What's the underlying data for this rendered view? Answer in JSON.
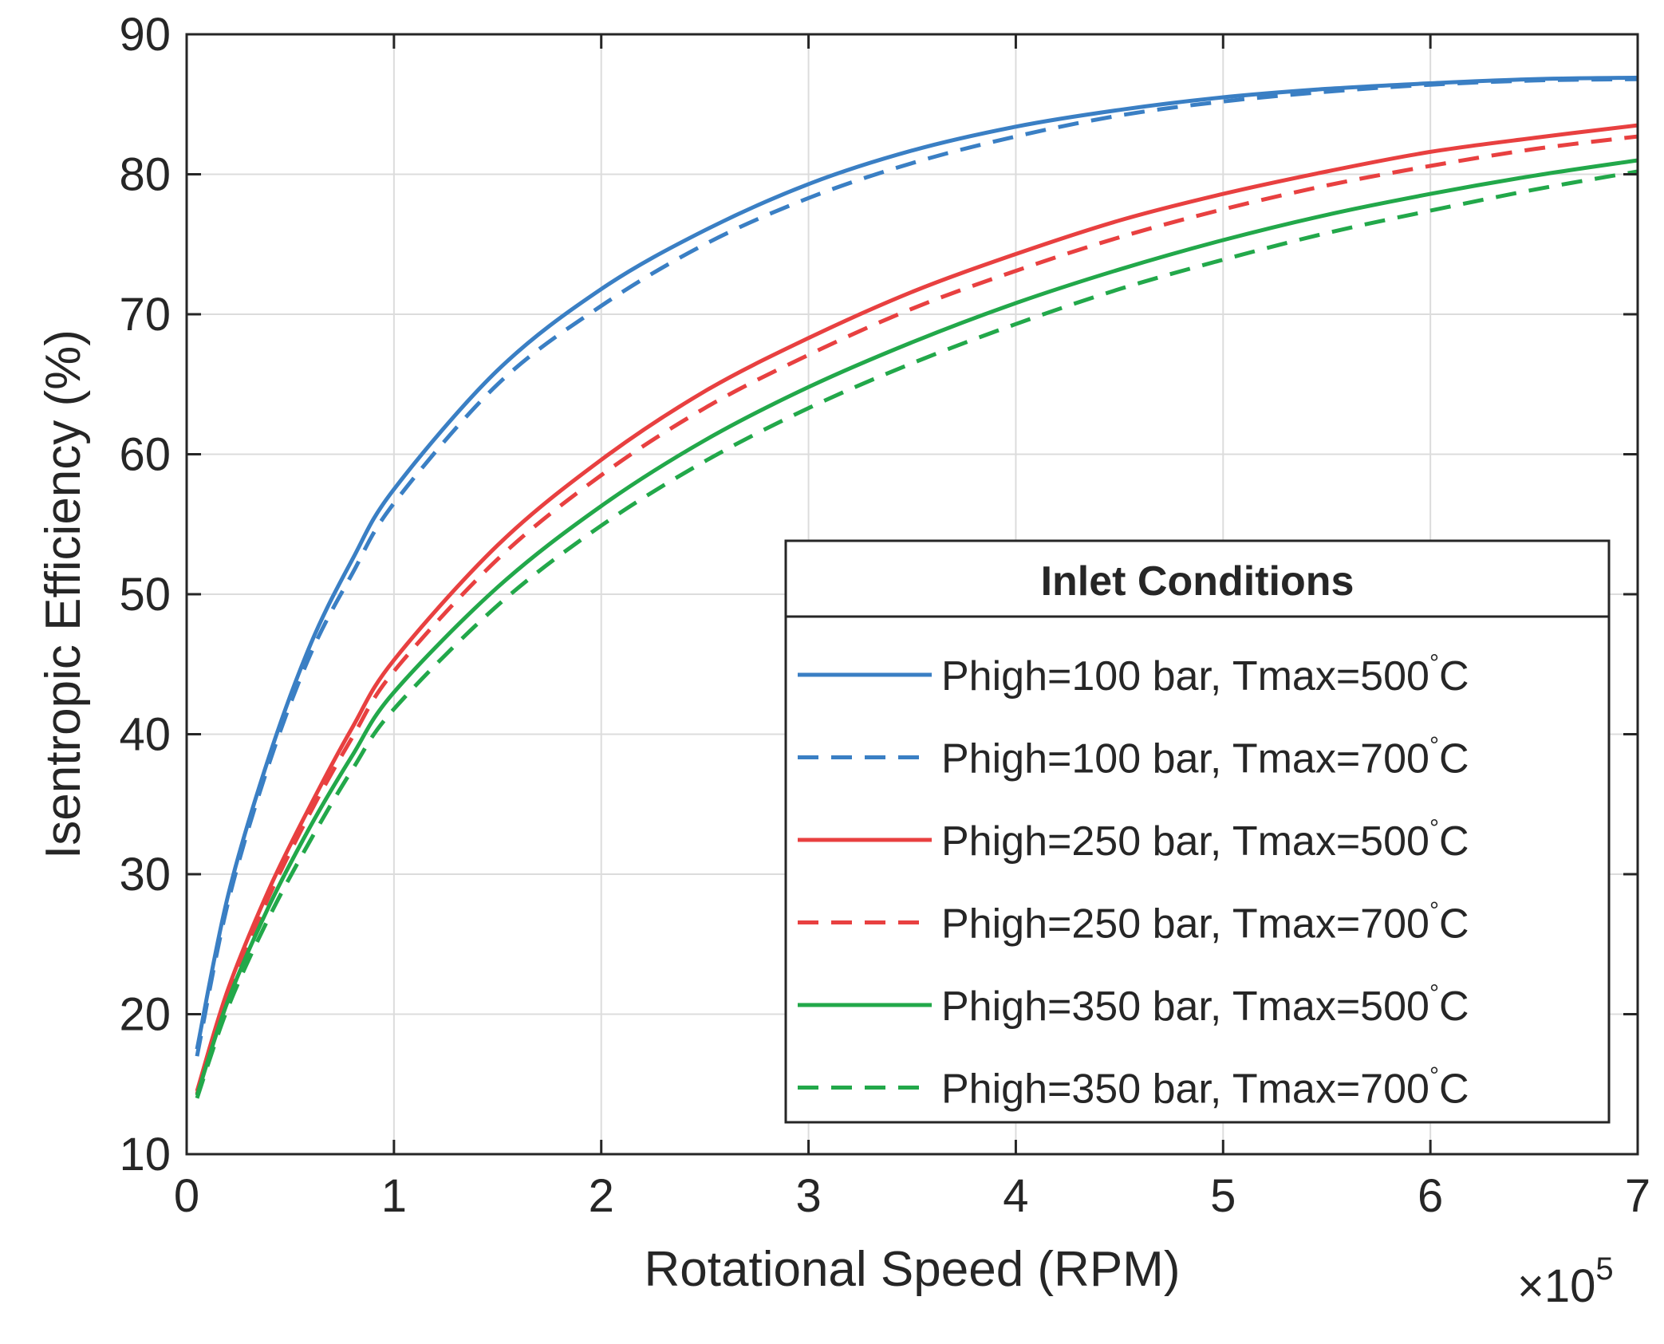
{
  "chart_data": {
    "type": "line",
    "title": "",
    "xlabel": "Rotational Speed (RPM)",
    "ylabel": "Isentropic Efficiency (%)",
    "x_exponent_label": "×10",
    "x_exponent_power": "5",
    "xlim": [
      0,
      7
    ],
    "ylim": [
      10,
      90
    ],
    "xticks": [
      0,
      1,
      2,
      3,
      4,
      5,
      6,
      7
    ],
    "yticks": [
      10,
      20,
      30,
      40,
      50,
      60,
      70,
      80,
      90
    ],
    "xtick_labels": [
      "0",
      "1",
      "2",
      "3",
      "4",
      "5",
      "6",
      "7"
    ],
    "ytick_labels": [
      "10",
      "20",
      "30",
      "40",
      "50",
      "60",
      "70",
      "80",
      "90"
    ],
    "grid": true,
    "legend": {
      "title": "Inlet Conditions",
      "placement": "lower-right",
      "degree_symbol": "°"
    },
    "x": [
      0.05,
      0.2,
      0.4,
      0.6,
      0.8,
      1.0,
      1.5,
      2.0,
      2.5,
      3.0,
      3.5,
      4.0,
      4.5,
      5.0,
      5.5,
      6.0,
      6.5,
      7.0
    ],
    "series": [
      {
        "name": "Phigh=100 bar, Tmax=500",
        "unit": "C",
        "color": "#3a7fc4",
        "dash": "solid",
        "values": [
          17.5,
          28.5,
          38.5,
          46.5,
          52.5,
          57.5,
          66.0,
          71.8,
          76.0,
          79.3,
          81.7,
          83.4,
          84.6,
          85.5,
          86.1,
          86.5,
          86.8,
          86.9
        ]
      },
      {
        "name": "Phigh=100 bar, Tmax=700",
        "unit": "C",
        "color": "#3a7fc4",
        "dash": "dashed",
        "values": [
          17.0,
          28.0,
          38.0,
          45.8,
          51.5,
          56.5,
          65.0,
          70.6,
          75.0,
          78.3,
          80.8,
          82.7,
          84.2,
          85.2,
          85.9,
          86.4,
          86.7,
          86.8
        ]
      },
      {
        "name": "Phigh=250 bar, Tmax=500",
        "unit": "C",
        "color": "#e84040",
        "dash": "solid",
        "values": [
          14.5,
          21.8,
          29.0,
          35.0,
          40.5,
          45.3,
          53.5,
          59.6,
          64.5,
          68.3,
          71.6,
          74.3,
          76.7,
          78.6,
          80.2,
          81.6,
          82.6,
          83.5
        ]
      },
      {
        "name": "Phigh=250 bar, Tmax=700",
        "unit": "C",
        "color": "#e84040",
        "dash": "dashed",
        "values": [
          14.3,
          21.3,
          28.5,
          34.5,
          39.8,
          44.5,
          52.5,
          58.5,
          63.3,
          67.1,
          70.4,
          73.1,
          75.5,
          77.5,
          79.2,
          80.6,
          81.8,
          82.7
        ]
      },
      {
        "name": "Phigh=350 bar, Tmax=500",
        "unit": "C",
        "color": "#22a84a",
        "dash": "solid",
        "values": [
          14.2,
          21.0,
          27.8,
          33.5,
          38.5,
          43.0,
          50.5,
          56.3,
          61.0,
          64.8,
          68.0,
          70.8,
          73.2,
          75.3,
          77.1,
          78.6,
          79.9,
          81.0
        ]
      },
      {
        "name": "Phigh=350 bar, Tmax=700",
        "unit": "C",
        "color": "#22a84a",
        "dash": "dashed",
        "values": [
          14.0,
          20.5,
          27.0,
          32.5,
          37.5,
          41.8,
          49.2,
          54.9,
          59.5,
          63.3,
          66.5,
          69.3,
          71.8,
          73.9,
          75.8,
          77.4,
          78.9,
          80.2
        ]
      }
    ]
  }
}
